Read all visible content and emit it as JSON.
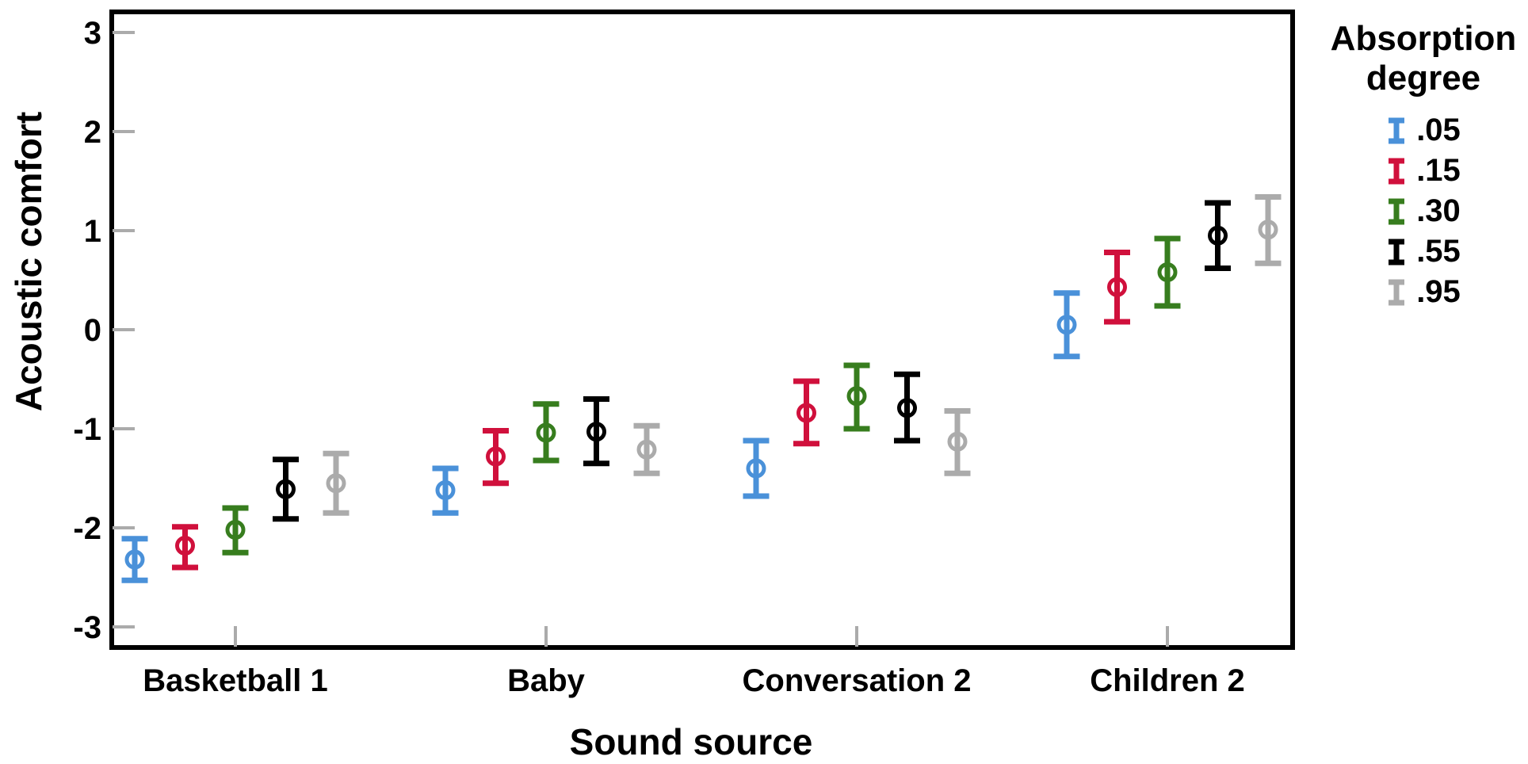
{
  "chart_data": {
    "type": "errorbar",
    "title": "",
    "xlabel": "Sound source",
    "ylabel": "Acoustic comfort",
    "ylim": [
      -3.25,
      3.25
    ],
    "y_ticks": [
      3,
      2,
      1,
      0,
      -1,
      -2,
      -3
    ],
    "grid": false,
    "categories": [
      "Basketball 1",
      "Baby",
      "Conversation 2",
      "Children 2"
    ],
    "legend": {
      "title": "Absorption degree",
      "position": "right"
    },
    "series": [
      {
        "label": ".05",
        "color": "#4A91D9",
        "means": [
          -2.32,
          -1.62,
          -1.4,
          0.05
        ],
        "ci_low": [
          -2.53,
          -1.85,
          -1.68,
          -0.27
        ],
        "ci_high": [
          -2.11,
          -1.4,
          -1.12,
          0.37
        ]
      },
      {
        "label": ".15",
        "color": "#D0103C",
        "means": [
          -2.18,
          -1.28,
          -0.84,
          0.43
        ],
        "ci_low": [
          -2.4,
          -1.55,
          -1.15,
          0.08
        ],
        "ci_high": [
          -1.99,
          -1.02,
          -0.52,
          0.78
        ]
      },
      {
        "label": ".30",
        "color": "#377D1E",
        "means": [
          -2.02,
          -1.04,
          -0.67,
          0.58
        ],
        "ci_low": [
          -2.25,
          -1.32,
          -1.0,
          0.24
        ],
        "ci_high": [
          -1.8,
          -0.75,
          -0.36,
          0.92
        ]
      },
      {
        "label": ".55",
        "color": "#000000",
        "means": [
          -1.61,
          -1.03,
          -0.79,
          0.95
        ],
        "ci_low": [
          -1.91,
          -1.35,
          -1.12,
          0.62
        ],
        "ci_high": [
          -1.31,
          -0.7,
          -0.45,
          1.28
        ]
      },
      {
        "label": ".95",
        "color": "#ABABAB",
        "means": [
          -1.55,
          -1.21,
          -1.13,
          1.01
        ],
        "ci_low": [
          -1.85,
          -1.45,
          -1.45,
          0.67
        ],
        "ci_high": [
          -1.25,
          -0.97,
          -0.82,
          1.34
        ]
      }
    ],
    "axis_color": "#000000",
    "tick_color": "#ABABAB"
  }
}
